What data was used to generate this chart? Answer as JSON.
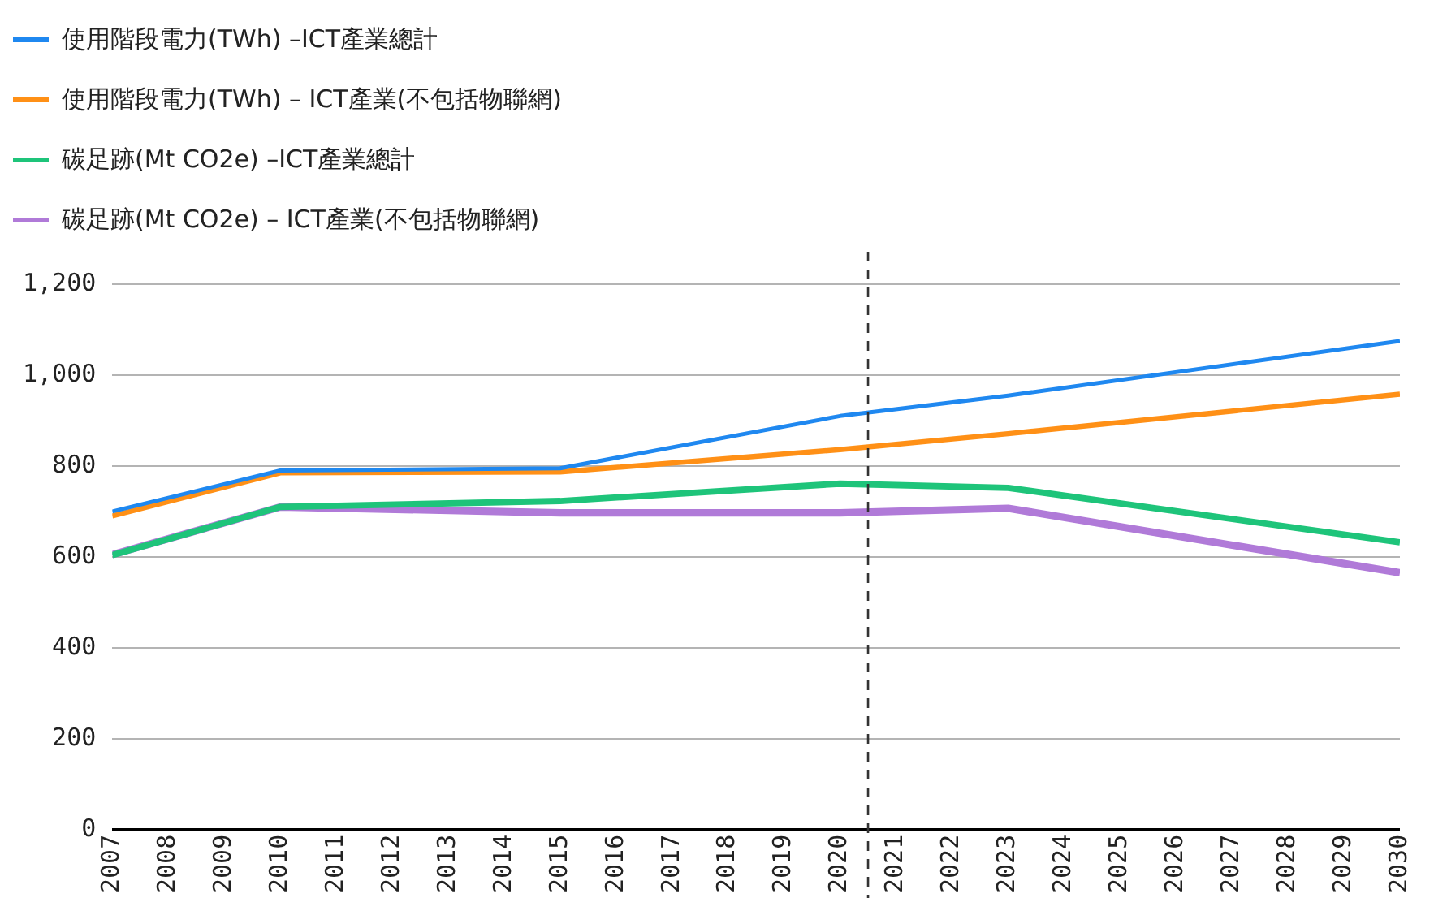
{
  "chart_data": {
    "type": "line",
    "x": [
      2007,
      2010,
      2015,
      2020,
      2023,
      2030
    ],
    "series": [
      {
        "name": "使用階段電力(TWh) –ICT產業總計",
        "color": "#1f88f0",
        "values": [
          700,
          790,
          795,
          910,
          955,
          1075
        ]
      },
      {
        "name": "使用階段電力(TWh) – ICT產業(不包括物聯網)",
        "color": "#ff9016",
        "values": [
          690,
          785,
          787,
          836,
          871,
          958
        ]
      },
      {
        "name": "碳足跡(Mt CO2e) –ICT產業總計",
        "color": "#1ec47a",
        "values": [
          604,
          710,
          723,
          761,
          752,
          632
        ]
      },
      {
        "name": "碳足跡(Mt CO2e) – ICT產業(不包括物聯網)",
        "color": "#b07ad8",
        "values": [
          605,
          710,
          697,
          697,
          707,
          565
        ]
      }
    ],
    "xlim": [
      2007,
      2030
    ],
    "xticks": [
      2007,
      2008,
      2009,
      2010,
      2011,
      2012,
      2013,
      2014,
      2015,
      2016,
      2017,
      2018,
      2019,
      2020,
      2021,
      2022,
      2023,
      2024,
      2025,
      2026,
      2027,
      2028,
      2029,
      2030
    ],
    "ylim": [
      0,
      1200
    ],
    "yticks": [
      0,
      200,
      400,
      600,
      800,
      {
        "value": 1000,
        "label": "1,000"
      },
      {
        "value": 1200,
        "label": "1,200"
      }
    ],
    "ref_lines": [
      {
        "axis": "x",
        "value": 2020.5,
        "color": "#333333",
        "line_style": "dashed"
      }
    ],
    "grid": "y",
    "legend": "top left",
    "marker": "none",
    "line_style": "solid"
  }
}
